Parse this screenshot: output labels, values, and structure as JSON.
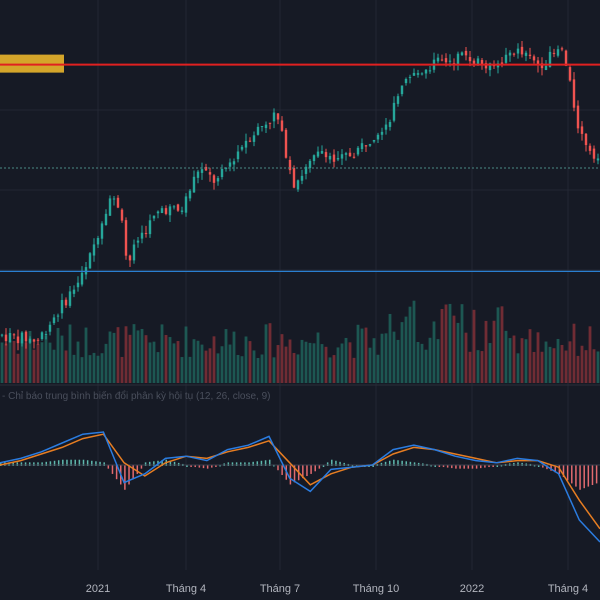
{
  "indicator": {
    "label": "- Chỉ báo trung bình biến đổi phân kỳ hội tụ (12, 26, close, 9)"
  },
  "x_axis": {
    "labels": [
      "2021",
      "Tháng 4",
      "Tháng 7",
      "Tháng 10",
      "2022",
      "Tháng 4"
    ]
  },
  "colors": {
    "background": "#161a25",
    "grid": "#232734",
    "up": "#26a69a",
    "down": "#ef5350",
    "resistance_line": "#e02020",
    "resistance_zone": "#d4a52a",
    "support_line": "#2a7fd0",
    "dotted_line": "#4a8a85",
    "macd_line": "#2b7ce0",
    "signal_line": "#e67d22"
  },
  "chart_data": [
    {
      "type": "candlestick",
      "title": "",
      "x_ticks": [
        "2021",
        "Tháng 4",
        "Tháng 7",
        "Tháng 10",
        "2022",
        "Tháng 4"
      ],
      "trend_keypoints": [
        {
          "t": 0.0,
          "v": 0.1
        },
        {
          "t": 0.06,
          "v": 0.08
        },
        {
          "t": 0.1,
          "v": 0.22
        },
        {
          "t": 0.14,
          "v": 0.36
        },
        {
          "t": 0.18,
          "v": 0.66
        },
        {
          "t": 0.2,
          "v": 0.62
        },
        {
          "t": 0.21,
          "v": 0.38
        },
        {
          "t": 0.23,
          "v": 0.5
        },
        {
          "t": 0.27,
          "v": 0.62
        },
        {
          "t": 0.3,
          "v": 0.6
        },
        {
          "t": 0.33,
          "v": 0.78
        },
        {
          "t": 0.36,
          "v": 0.72
        },
        {
          "t": 0.41,
          "v": 0.9
        },
        {
          "t": 0.46,
          "v": 1.0
        },
        {
          "t": 0.49,
          "v": 0.72
        },
        {
          "t": 0.54,
          "v": 0.86
        },
        {
          "t": 0.56,
          "v": 0.8
        },
        {
          "t": 0.6,
          "v": 0.86
        },
        {
          "t": 0.65,
          "v": 0.98
        },
        {
          "t": 0.68,
          "v": 1.14
        },
        {
          "t": 0.72,
          "v": 1.2
        },
        {
          "t": 0.78,
          "v": 1.24
        },
        {
          "t": 0.82,
          "v": 1.18
        },
        {
          "t": 0.86,
          "v": 1.26
        },
        {
          "t": 0.9,
          "v": 1.2
        },
        {
          "t": 0.94,
          "v": 1.26
        },
        {
          "t": 0.97,
          "v": 0.92
        },
        {
          "t": 1.0,
          "v": 0.82
        }
      ],
      "levels": {
        "resistance": 1.2,
        "dotted": 0.78,
        "support": 0.36
      }
    },
    {
      "type": "line",
      "title": "",
      "series": [
        {
          "values": [
            0.1,
            0.3,
            0.6,
            1.0,
            1.4,
            1.5,
            -0.8,
            -0.4,
            0.3,
            0.4,
            0.2,
            0.7,
            0.9,
            1.3,
            -0.6,
            -1.2,
            -0.2,
            -0.1,
            0.0,
            0.7,
            0.9,
            0.7,
            0.4,
            0.2,
            0.1,
            0.3,
            0.2,
            -0.4,
            -2.5,
            -3.5
          ]
        },
        {
          "values": [
            0.0,
            0.2,
            0.5,
            0.8,
            1.2,
            1.4,
            0.1,
            -0.5,
            0.1,
            0.4,
            0.3,
            0.6,
            0.8,
            1.1,
            0.1,
            -0.9,
            -0.4,
            -0.1,
            0.0,
            0.5,
            0.8,
            0.7,
            0.5,
            0.3,
            0.1,
            0.2,
            0.2,
            -0.1,
            -1.6,
            -2.9
          ]
        }
      ]
    }
  ]
}
